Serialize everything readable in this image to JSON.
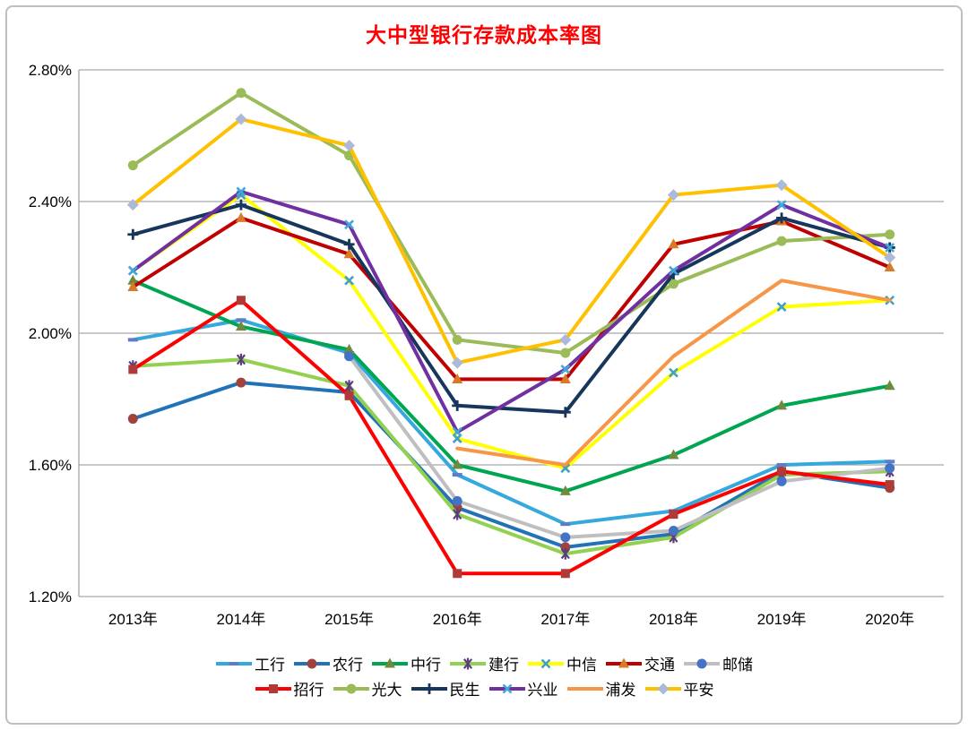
{
  "title": "大中型银行存款成本率图",
  "title_color": "#ff0000",
  "chart_data": {
    "type": "line",
    "categories": [
      "2013年",
      "2014年",
      "2015年",
      "2016年",
      "2017年",
      "2018年",
      "2019年",
      "2020年"
    ],
    "y_ticks": [
      "2.80%",
      "2.40%",
      "2.00%",
      "1.60%",
      "1.20%"
    ],
    "ylim": [
      1.2,
      2.8
    ],
    "y_step": 0.4,
    "grid": true,
    "grid_color": "#a6a6a6",
    "legend_position": "bottom",
    "legend_rows": [
      [
        "工行",
        "农行",
        "中行",
        "建行",
        "中信",
        "交通",
        "邮储"
      ],
      [
        "招行",
        "光大",
        "民生",
        "兴业",
        "浦发",
        "平安"
      ]
    ],
    "series": [
      {
        "key": "icbc",
        "name": "工行",
        "line_color": "#35a8de",
        "marker": "dash",
        "marker_color": "#5b7fc7",
        "values": [
          1.98,
          2.04,
          1.94,
          1.57,
          1.42,
          1.46,
          1.6,
          1.61
        ]
      },
      {
        "key": "abc",
        "name": "农行",
        "line_color": "#2272b8",
        "marker": "circle",
        "marker_color": "#a2423d",
        "values": [
          1.74,
          1.85,
          1.82,
          1.47,
          1.35,
          1.39,
          1.58,
          1.53
        ]
      },
      {
        "key": "boc",
        "name": "中行",
        "line_color": "#00a550",
        "marker": "triangle",
        "marker_color": "#6e8b3d",
        "values": [
          2.16,
          2.02,
          1.95,
          1.6,
          1.52,
          1.63,
          1.78,
          1.84
        ]
      },
      {
        "key": "ccb",
        "name": "建行",
        "line_color": "#92d050",
        "marker": "asterisk",
        "marker_color": "#5c3e7e",
        "values": [
          1.9,
          1.92,
          1.84,
          1.45,
          1.33,
          1.38,
          1.57,
          1.58
        ]
      },
      {
        "key": "citic",
        "name": "中信",
        "line_color": "#ffff00",
        "marker": "x",
        "marker_color": "#3fa0c8",
        "values": [
          2.19,
          2.42,
          2.16,
          1.68,
          1.59,
          1.88,
          2.08,
          2.1
        ]
      },
      {
        "key": "bocom",
        "name": "交通",
        "line_color": "#c00000",
        "marker": "triangle",
        "marker_color": "#d77b29",
        "values": [
          2.14,
          2.35,
          2.24,
          1.86,
          1.86,
          2.27,
          2.34,
          2.2
        ]
      },
      {
        "key": "psbc",
        "name": "邮储",
        "line_color": "#bfbfbf",
        "marker": "circle",
        "marker_color": "#4472c4",
        "values": [
          null,
          null,
          1.93,
          1.49,
          1.38,
          1.4,
          1.55,
          1.59
        ]
      },
      {
        "key": "cmb",
        "name": "招行",
        "line_color": "#ff0000",
        "marker": "square",
        "marker_color": "#b03a37",
        "values": [
          1.89,
          2.1,
          1.81,
          1.27,
          1.27,
          1.45,
          1.58,
          1.54
        ]
      },
      {
        "key": "ceb",
        "name": "光大",
        "line_color": "#9bbb59",
        "marker": "circle",
        "marker_color": "#9bbb59",
        "values": [
          2.51,
          2.73,
          2.54,
          1.98,
          1.94,
          2.15,
          2.28,
          2.3
        ]
      },
      {
        "key": "cmbc",
        "name": "民生",
        "line_color": "#16365c",
        "marker": "plus",
        "marker_color": "#16365c",
        "values": [
          2.3,
          2.39,
          2.27,
          1.78,
          1.76,
          2.18,
          2.35,
          2.26
        ]
      },
      {
        "key": "cib",
        "name": "兴业",
        "line_color": "#7030a0",
        "marker": "x",
        "marker_color": "#41a8d8",
        "values": [
          2.19,
          2.43,
          2.33,
          1.7,
          1.89,
          2.19,
          2.39,
          2.26
        ]
      },
      {
        "key": "spdb",
        "name": "浦发",
        "line_color": "#f79646",
        "marker": "none",
        "marker_color": "#f79646",
        "values": [
          null,
          null,
          null,
          1.65,
          1.6,
          1.93,
          2.16,
          2.1
        ]
      },
      {
        "key": "pab",
        "name": "平安",
        "line_color": "#ffc000",
        "marker": "diamond",
        "marker_color": "#acb9d8",
        "values": [
          2.39,
          2.65,
          2.57,
          1.91,
          1.98,
          2.42,
          2.45,
          2.23
        ]
      }
    ]
  }
}
